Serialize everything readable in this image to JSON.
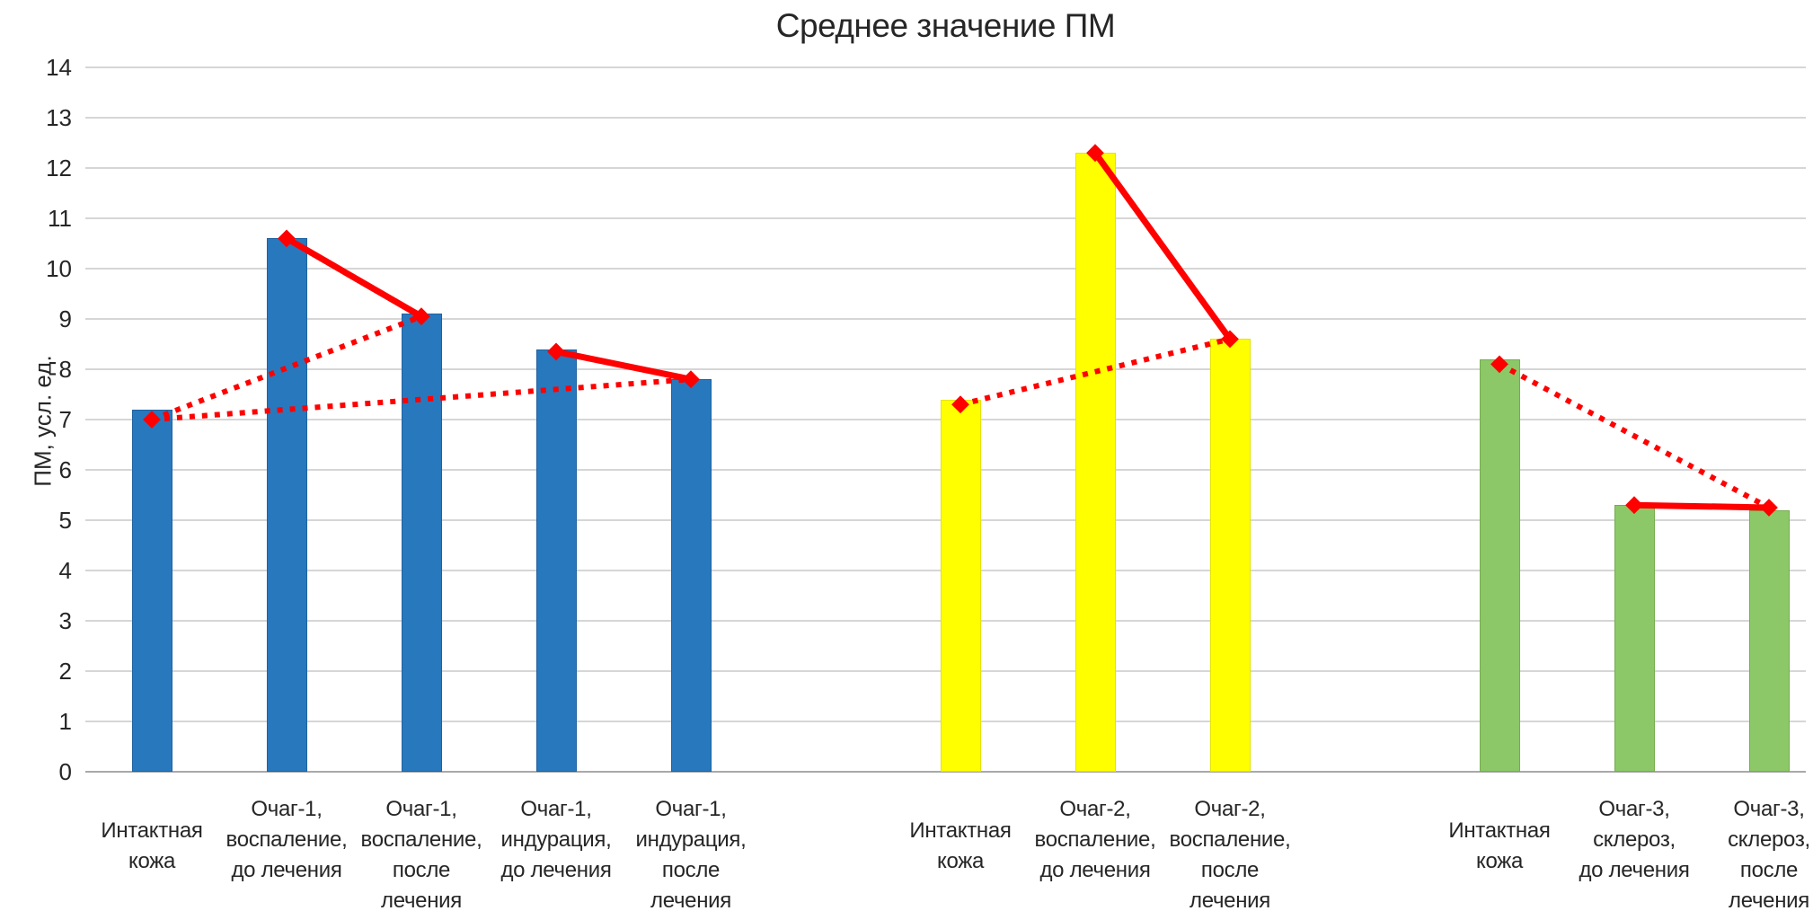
{
  "title": "Среднее значение ПМ",
  "y_axis": {
    "label": "ПМ, усл. ед.",
    "ticks": [
      0,
      1,
      2,
      3,
      4,
      5,
      6,
      7,
      8,
      9,
      10,
      11,
      12,
      13,
      14
    ]
  },
  "colors": {
    "bar_blue": "#2878BE",
    "bar_blue_border": "#1f62a0",
    "bar_yellow": "#FFFF00",
    "bar_yellow_border": "#e3e300",
    "bar_green": "#8CC868",
    "bar_green_border": "#76ac4e",
    "line_red": "#FF0000",
    "gridline": "#d6d6d6",
    "baseline": "#a9a9a9",
    "text": "#262626"
  },
  "chart_data": {
    "type": "bar",
    "title": "Среднее значение ПМ",
    "xlabel": "",
    "ylabel": "ПМ, усл. ед.",
    "ylim": [
      0,
      14
    ],
    "ytick_step": 1,
    "grid": true,
    "legend": false,
    "slots_total": 13,
    "bars": [
      {
        "slot": 0,
        "group": "Очаг-1",
        "label": "Интактная кожа",
        "label_lines": [
          "Интактная",
          "кожа"
        ],
        "value": 7.2,
        "color": "#2878BE",
        "border": "#1f62a0"
      },
      {
        "slot": 1,
        "group": "Очаг-1",
        "label": "Очаг-1, воспаление, до лечения",
        "label_lines": [
          "Очаг-1,",
          "воспаление,",
          "до лечения"
        ],
        "value": 10.6,
        "color": "#2878BE",
        "border": "#1f62a0"
      },
      {
        "slot": 2,
        "group": "Очаг-1",
        "label": "Очаг-1, воспаление, после лечения",
        "label_lines": [
          "Очаг-1,",
          "воспаление,",
          "после",
          "лечения"
        ],
        "value": 9.1,
        "color": "#2878BE",
        "border": "#1f62a0"
      },
      {
        "slot": 3,
        "group": "Очаг-1",
        "label": "Очаг-1, индурация, до лечения",
        "label_lines": [
          "Очаг-1,",
          "индурация,",
          "до лечения"
        ],
        "value": 8.4,
        "color": "#2878BE",
        "border": "#1f62a0"
      },
      {
        "slot": 4,
        "group": "Очаг-1",
        "label": "Очаг-1, индурация, после лечения",
        "label_lines": [
          "Очаг-1,",
          "индурация,",
          "после",
          "лечения"
        ],
        "value": 7.8,
        "color": "#2878BE",
        "border": "#1f62a0"
      },
      {
        "slot": 6,
        "group": "Очаг-2",
        "label": "Интактная кожа",
        "label_lines": [
          "Интактная",
          "кожа"
        ],
        "value": 7.4,
        "color": "#FFFF00",
        "border": "#e3e300"
      },
      {
        "slot": 7,
        "group": "Очаг-2",
        "label": "Очаг-2, воспаление, до лечения",
        "label_lines": [
          "Очаг-2,",
          "воспаление,",
          "до лечения"
        ],
        "value": 12.3,
        "color": "#FFFF00",
        "border": "#e3e300"
      },
      {
        "slot": 8,
        "group": "Очаг-2",
        "label": "Очаг-2, воспаление, после лечения",
        "label_lines": [
          "Очаг-2,",
          "воспаление,",
          "после",
          "лечения"
        ],
        "value": 8.6,
        "color": "#FFFF00",
        "border": "#e3e300"
      },
      {
        "slot": 10,
        "group": "Очаг-3",
        "label": "Интактная кожа",
        "label_lines": [
          "Интактная",
          "кожа"
        ],
        "value": 8.2,
        "color": "#8CC868",
        "border": "#76ac4e"
      },
      {
        "slot": 11,
        "group": "Очаг-3",
        "label": "Очаг-3, склероз, до лечения",
        "label_lines": [
          "Очаг-3,",
          "склероз,",
          "до лечения"
        ],
        "value": 5.3,
        "color": "#8CC868",
        "border": "#76ac4e"
      },
      {
        "slot": 12,
        "group": "Очаг-3",
        "label": "Очаг-3, склероз, после лечения",
        "label_lines": [
          "Очаг-3,",
          "склероз,",
          "после",
          "лечения"
        ],
        "value": 5.2,
        "color": "#8CC868",
        "border": "#76ac4e"
      }
    ],
    "markers": [
      {
        "slot": 0,
        "value": 7.0
      },
      {
        "slot": 1,
        "value": 10.6
      },
      {
        "slot": 2,
        "value": 9.05
      },
      {
        "slot": 3,
        "value": 8.35
      },
      {
        "slot": 4,
        "value": 7.8
      },
      {
        "slot": 6,
        "value": 7.3
      },
      {
        "slot": 7,
        "value": 12.3
      },
      {
        "slot": 8,
        "value": 8.6
      },
      {
        "slot": 10,
        "value": 8.1
      },
      {
        "slot": 11,
        "value": 5.3
      },
      {
        "slot": 12,
        "value": 5.25
      }
    ],
    "overlay_lines": [
      {
        "style": "solid",
        "from": 1,
        "to": 2
      },
      {
        "style": "solid",
        "from": 3,
        "to": 4
      },
      {
        "style": "solid",
        "from": 7,
        "to": 8
      },
      {
        "style": "solid",
        "from": 11,
        "to": 12
      },
      {
        "style": "dotted",
        "from": 0,
        "to": 2
      },
      {
        "style": "dotted",
        "from": 0,
        "to": 4
      },
      {
        "style": "dotted",
        "from": 6,
        "to": 8
      },
      {
        "style": "dotted",
        "from": 10,
        "to": 12
      }
    ],
    "line_color": "#FF0000"
  }
}
